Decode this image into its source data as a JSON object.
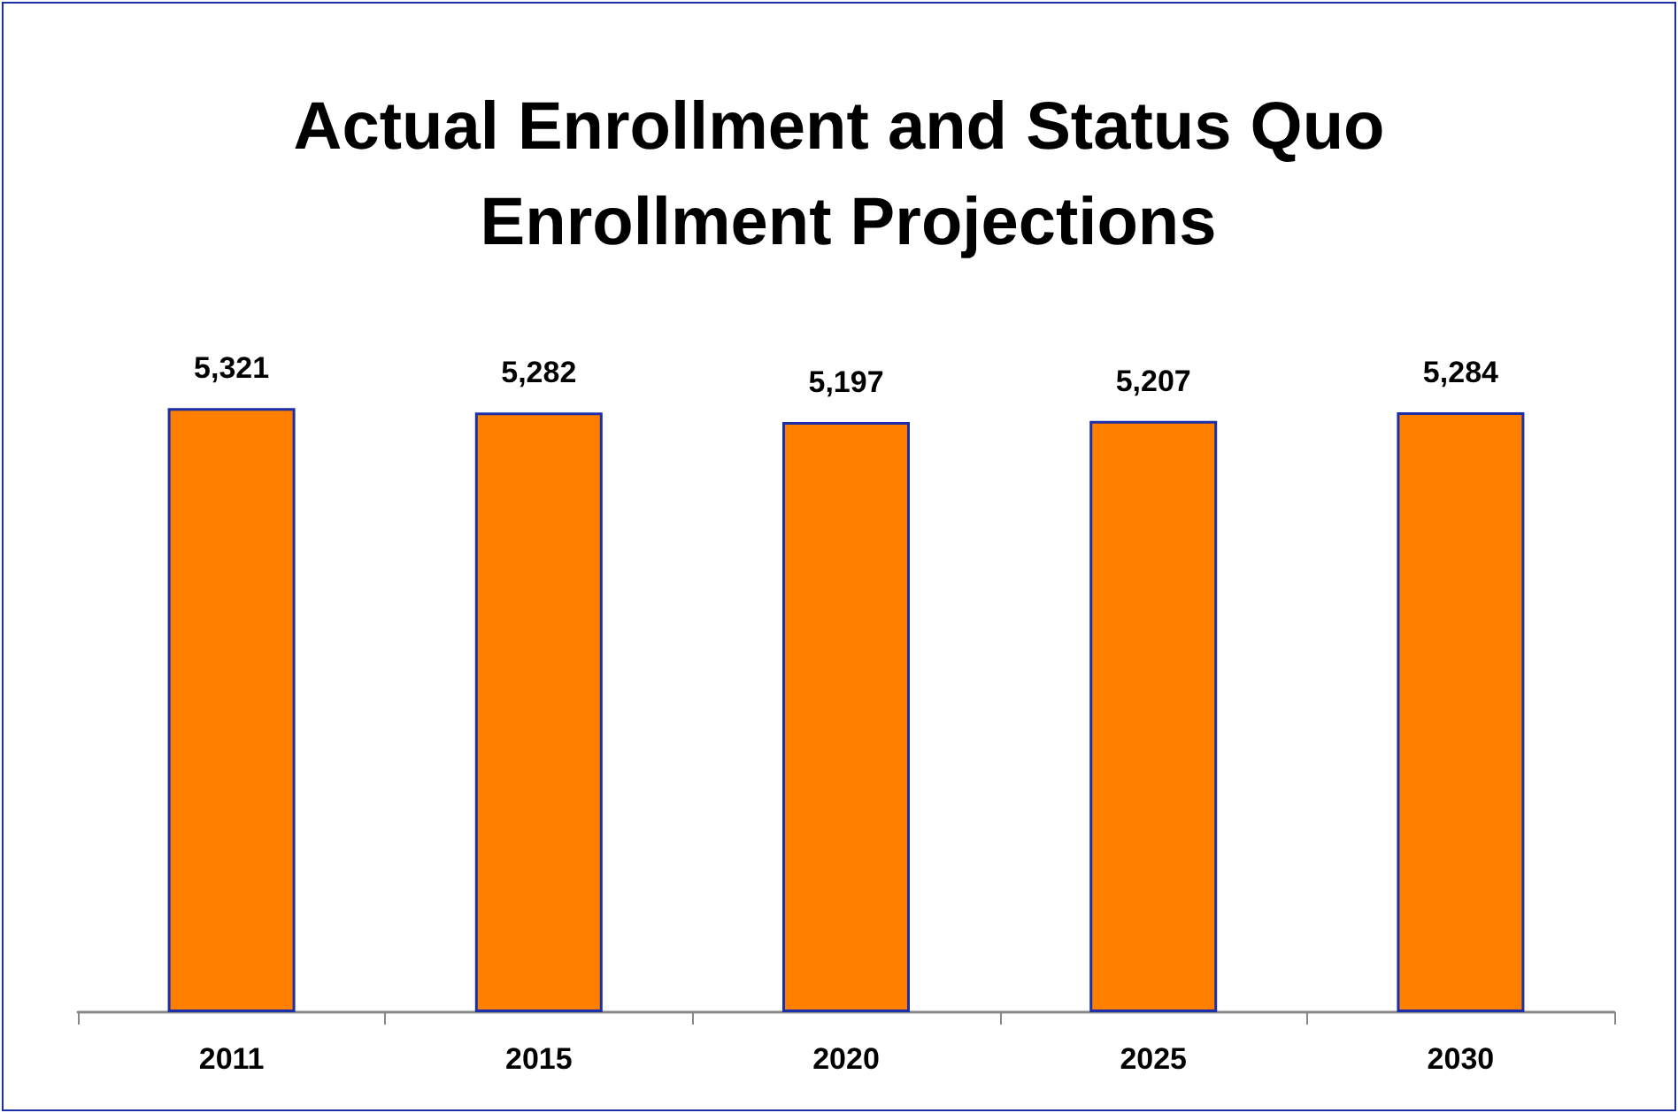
{
  "chart_data": {
    "type": "bar",
    "title": "Actual Enrollment and Status Quo Enrollment Projections",
    "categories": [
      "2011",
      "2015",
      "2020",
      "2025",
      "2030"
    ],
    "values": [
      5321,
      5282,
      5197,
      5207,
      5284
    ],
    "value_labels": [
      "5,321",
      "5,282",
      "5,197",
      "5,207",
      "5,284"
    ],
    "color": "#ff7f00",
    "tick_labels": "x"
  }
}
